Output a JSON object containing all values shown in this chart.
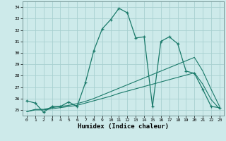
{
  "title": "",
  "xlabel": "Humidex (Indice chaleur)",
  "x": [
    0,
    1,
    2,
    3,
    4,
    5,
    6,
    7,
    8,
    9,
    10,
    11,
    12,
    13,
    14,
    15,
    16,
    17,
    18,
    19,
    20,
    21,
    22,
    23
  ],
  "humidex": [
    25.8,
    25.6,
    24.8,
    25.3,
    25.3,
    25.7,
    25.3,
    27.4,
    30.2,
    32.1,
    32.9,
    33.9,
    33.5,
    31.3,
    31.4,
    25.3,
    31.0,
    31.4,
    30.8,
    28.4,
    28.2,
    26.8,
    25.3,
    25.2
  ],
  "line_upper": [
    24.85,
    25.05,
    25.05,
    25.2,
    25.3,
    25.4,
    25.55,
    25.75,
    26.0,
    26.3,
    26.6,
    26.9,
    27.2,
    27.5,
    27.8,
    28.1,
    28.4,
    28.7,
    29.0,
    29.3,
    29.6,
    28.4,
    26.8,
    25.3
  ],
  "line_lower": [
    24.85,
    25.0,
    25.0,
    25.1,
    25.2,
    25.3,
    25.4,
    25.6,
    25.8,
    26.0,
    26.2,
    26.45,
    26.65,
    26.85,
    27.05,
    27.25,
    27.45,
    27.65,
    27.85,
    28.05,
    28.25,
    27.25,
    25.9,
    25.1
  ],
  "bg_color": "#cdeaea",
  "grid_color": "#a8d0d0",
  "line_color": "#1a7a6a",
  "ylim_min": 24.5,
  "ylim_max": 34.5,
  "yticks": [
    25,
    26,
    27,
    28,
    29,
    30,
    31,
    32,
    33,
    34
  ]
}
